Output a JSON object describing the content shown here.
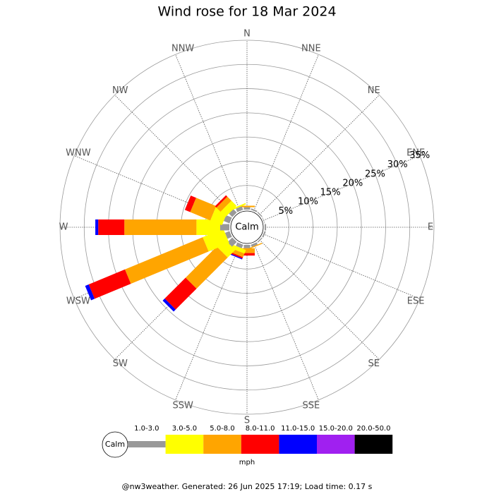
{
  "chart_data": {
    "type": "windrose",
    "title": "Wind rose for 18 Mar 2024",
    "categories": [
      "N",
      "NNE",
      "NE",
      "ENE",
      "E",
      "ESE",
      "SE",
      "SSE",
      "S",
      "SSW",
      "SW",
      "WSW",
      "W",
      "WNW",
      "NW",
      "NNW"
    ],
    "series": [
      {
        "name": "1.0-3.0",
        "color": "#999999",
        "values": [
          0.5,
          0.3,
          0.2,
          0.1,
          0.3,
          0.3,
          0.2,
          0.5,
          0.7,
          0.8,
          1.4,
          1.0,
          1.9,
          1.3,
          1.0,
          0.8
        ]
      },
      {
        "name": "3.0-5.0",
        "color": "#ffff00",
        "values": [
          0,
          0,
          0,
          0,
          0,
          0,
          0,
          0,
          0,
          0.8,
          2.2,
          4.6,
          4.9,
          2.6,
          1.5,
          0.3
        ]
      },
      {
        "name": "5.0-8.0",
        "color": "#ffa500",
        "values": [
          0.3,
          0,
          0,
          0,
          0,
          0,
          0,
          0.2,
          1.0,
          0.8,
          9.1,
          17.4,
          14.9,
          4.5,
          1.2,
          0
        ]
      },
      {
        "name": "8.0-11.0",
        "color": "#ff0000",
        "values": [
          0,
          0,
          0,
          0,
          0,
          0,
          0,
          0,
          0.5,
          0.3,
          6.1,
          8.1,
          5.4,
          1.2,
          0.4,
          0
        ]
      },
      {
        "name": "11.0-15.0",
        "color": "#0000ff",
        "values": [
          0,
          0,
          0,
          0,
          0,
          0,
          0,
          0,
          0,
          0.2,
          0.6,
          0.8,
          0.6,
          0,
          0,
          0
        ]
      },
      {
        "name": "15.0-20.0",
        "color": "#a020f0",
        "values": [
          0,
          0,
          0,
          0,
          0,
          0,
          0,
          0,
          0,
          0,
          0,
          0,
          0,
          0,
          0,
          0
        ]
      },
      {
        "name": "20.0-50.0",
        "color": "#000000",
        "values": [
          0,
          0,
          0,
          0,
          0,
          0,
          0,
          0,
          0,
          0,
          0,
          0,
          0,
          0,
          0,
          0
        ]
      }
    ],
    "ylim": [
      0,
      35
    ],
    "yticks": [
      {
        "value": 5,
        "label": "5%"
      },
      {
        "value": 10,
        "label": "10%"
      },
      {
        "value": 15,
        "label": "15%"
      },
      {
        "value": 20,
        "label": "20%"
      },
      {
        "value": 25,
        "label": "25%"
      },
      {
        "value": 30,
        "label": "30%"
      },
      {
        "value": 35,
        "label": "35%"
      }
    ],
    "center_label": "Calm",
    "units": "mph",
    "footer": "@nw3weather. Generated: 26 Jun 2025 17:19; Load time: 0.17 s"
  }
}
